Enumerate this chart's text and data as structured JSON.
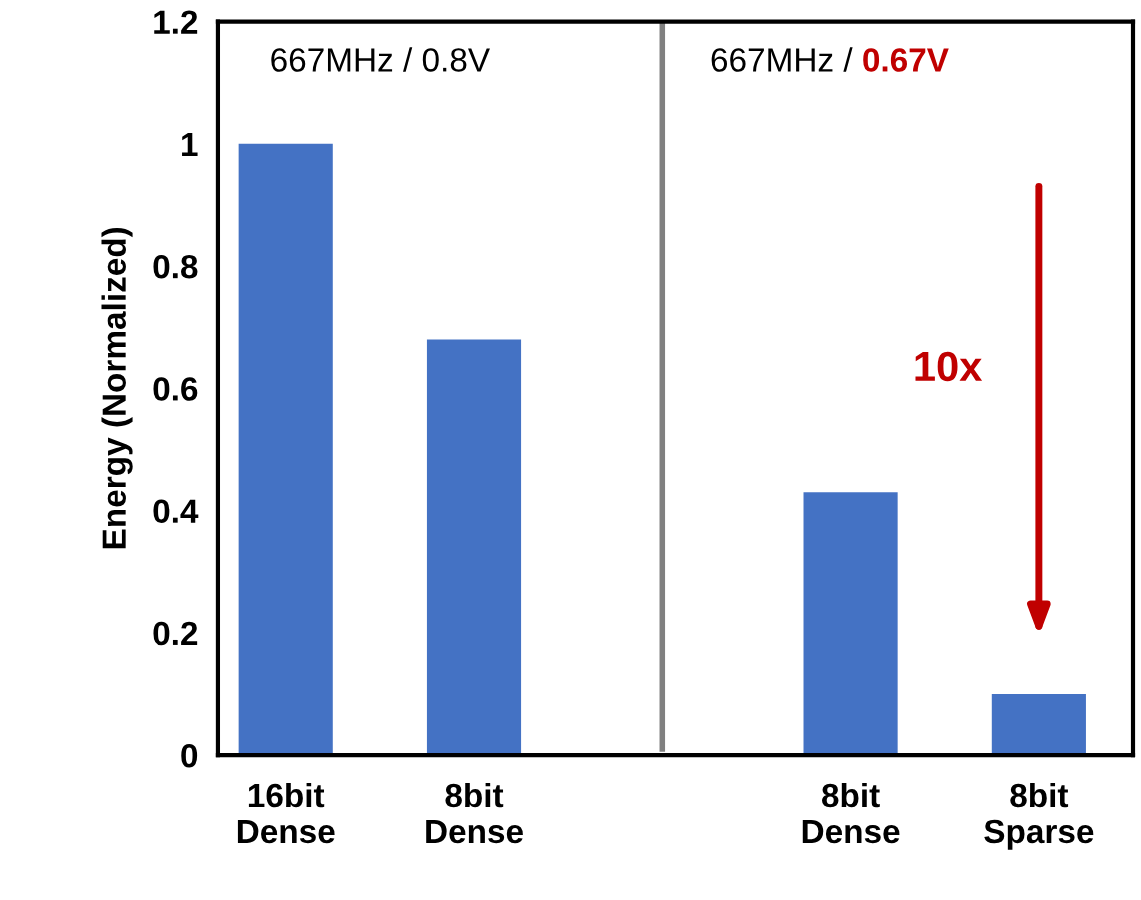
{
  "chart_data": {
    "type": "bar",
    "ylabel": "Energy (Normalized)",
    "categories": [
      "16bit\nDense",
      "8bit\nDense",
      null,
      "8bit\nDense",
      "8bit\nSparse"
    ],
    "values": [
      1.0,
      0.68,
      null,
      0.43,
      0.1
    ],
    "color": "#4472c4",
    "ylim": [
      0,
      1.2
    ],
    "yticks": [
      0,
      0.2,
      0.4,
      0.6,
      0.8,
      {
        "value": 1,
        "label": "1"
      },
      1.2
    ],
    "annotations": [
      "667MHz / 0.8V",
      "667MHz / ",
      "0.67V",
      "10x"
    ]
  }
}
